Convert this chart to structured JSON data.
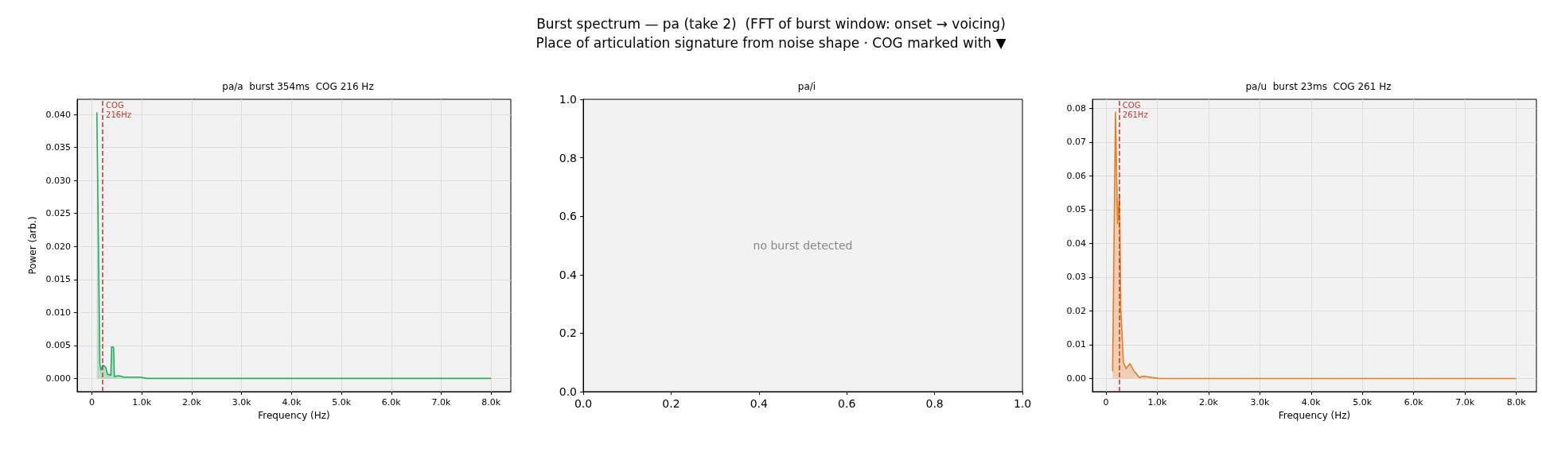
{
  "chart_data": [
    {
      "type": "other",
      "title": "Burst spectrum — pa (take 2)  (FFT of burst window: onset → voicing)",
      "subtitle": "Place of articulation signature from noise shape · COG marked with ▼"
    },
    {
      "type": "area",
      "title": "pa/a  burst 354ms  COG 216 Hz",
      "xlabel": "Frequency (Hz)",
      "ylabel": "Power (arb.)",
      "x": [
        100,
        160,
        180,
        220,
        275,
        315,
        380,
        395,
        435,
        450,
        540,
        650,
        970,
        1100,
        8000
      ],
      "series": [
        {
          "color": "#27ae60",
          "values": [
            0.0403,
            0.0022,
            0.0013,
            0.002,
            0.0017,
            0.0006,
            0.0005,
            0.0048,
            0.0047,
            0.0003,
            0.0004,
            0.0002,
            0.0002,
            0,
            0
          ]
        }
      ],
      "xlim": [
        -295,
        8395
      ],
      "ylim": [
        -0.002,
        0.0423
      ],
      "xticks": [
        0,
        {
          "value": 1000,
          "label": "1.0k"
        },
        {
          "value": 2000,
          "label": "2.0k"
        },
        {
          "value": 3000,
          "label": "3.0k"
        },
        {
          "value": 4000,
          "label": "4.0k"
        },
        {
          "value": 5000,
          "label": "5.0k"
        },
        {
          "value": 6000,
          "label": "6.0k"
        },
        {
          "value": 7000,
          "label": "7.0k"
        },
        {
          "value": 8000,
          "label": "8.0k"
        }
      ],
      "yticks": [
        {
          "value": 0,
          "label": "0.000"
        },
        {
          "value": 0.005,
          "label": "0.005"
        },
        {
          "value": 0.01,
          "label": "0.010"
        },
        {
          "value": 0.015,
          "label": "0.015"
        },
        {
          "value": 0.02,
          "label": "0.020"
        },
        {
          "value": 0.025,
          "label": "0.025"
        },
        {
          "value": 0.03,
          "label": "0.030"
        },
        {
          "value": 0.035,
          "label": "0.035"
        },
        {
          "value": 0.04,
          "label": "0.040"
        }
      ],
      "ref_lines": [
        {
          "axis": "x",
          "value": 216,
          "label": "COG\n216Hz",
          "color": "#c0392b",
          "line_style": "dashed"
        }
      ],
      "grid": true
    },
    {
      "type": "line",
      "title": "pa/i",
      "xlim": [
        0,
        1
      ],
      "ylim": [
        0,
        1
      ],
      "xticks": [
        {
          "value": 0,
          "label": "0.0"
        },
        {
          "value": 0.2,
          "label": "0.2"
        },
        {
          "value": 0.4,
          "label": "0.4"
        },
        {
          "value": 0.6,
          "label": "0.6"
        },
        {
          "value": 0.8,
          "label": "0.8"
        },
        {
          "value": 1,
          "label": "1.0"
        }
      ],
      "yticks": [
        {
          "value": 0,
          "label": "0.0"
        },
        {
          "value": 0.2,
          "label": "0.2"
        },
        {
          "value": 0.4,
          "label": "0.4"
        },
        {
          "value": 0.6,
          "label": "0.6"
        },
        {
          "value": 0.8,
          "label": "0.8"
        },
        {
          "value": 1,
          "label": "1.0"
        }
      ],
      "annotations": [
        "no burst detected"
      ]
    },
    {
      "type": "area",
      "title": "pa/u  burst 23ms  COG 261 Hz",
      "xlabel": "Frequency (Hz)",
      "x": [
        130,
        186,
        227,
        264,
        290,
        341,
        393,
        470,
        548,
        599,
        651,
        729,
        884,
        1039,
        8000
      ],
      "series": [
        {
          "color": "#e67e22",
          "values": [
            0.0021,
            0.0789,
            0.0458,
            0.0545,
            0.0203,
            0.0048,
            0.0029,
            0.0044,
            0.0021,
            0.0013,
            0.0003,
            0.0007,
            0.0003,
            0,
            0
          ]
        }
      ],
      "xlim": [
        -263,
        8393
      ],
      "ylim": [
        -0.0039,
        0.0827
      ],
      "xticks": [
        0,
        {
          "value": 1000,
          "label": "1.0k"
        },
        {
          "value": 2000,
          "label": "2.0k"
        },
        {
          "value": 3000,
          "label": "3.0k"
        },
        {
          "value": 4000,
          "label": "4.0k"
        },
        {
          "value": 5000,
          "label": "5.0k"
        },
        {
          "value": 6000,
          "label": "6.0k"
        },
        {
          "value": 7000,
          "label": "7.0k"
        },
        {
          "value": 8000,
          "label": "8.0k"
        }
      ],
      "yticks": [
        {
          "value": 0,
          "label": "0.00"
        },
        {
          "value": 0.01,
          "label": "0.01"
        },
        {
          "value": 0.02,
          "label": "0.02"
        },
        {
          "value": 0.03,
          "label": "0.03"
        },
        {
          "value": 0.04,
          "label": "0.04"
        },
        {
          "value": 0.05,
          "label": "0.05"
        },
        {
          "value": 0.06,
          "label": "0.06"
        },
        {
          "value": 0.07,
          "label": "0.07"
        },
        {
          "value": 0.08,
          "label": "0.08"
        }
      ],
      "ref_lines": [
        {
          "axis": "x",
          "value": 261,
          "label": "COG\n261Hz",
          "color": "#c0392b",
          "line_style": "dashed"
        }
      ],
      "grid": true
    }
  ]
}
